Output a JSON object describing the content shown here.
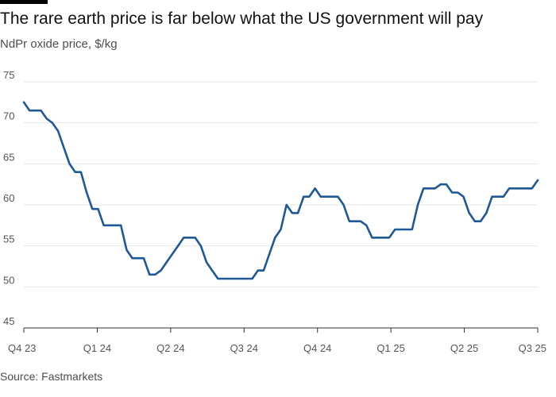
{
  "header": {
    "title": "The rare earth price is far below what the US government will pay",
    "subtitle": "NdPr oxide price, $/kg"
  },
  "footer": {
    "source": "Source: Fastmarkets"
  },
  "colors": {
    "line": "#1f5896",
    "grid": "#e6e6e6",
    "text": "#555555"
  },
  "chart_data": {
    "type": "line",
    "title": "The rare earth price is far below what the US government will pay",
    "subtitle": "NdPr oxide price, $/kg",
    "xlabel": "",
    "ylabel": "",
    "ylim": [
      45,
      75
    ],
    "yticks": [
      45,
      50,
      55,
      60,
      65,
      70,
      75
    ],
    "grid": true,
    "x_tick_labels": [
      "Q4 23",
      "Q1 24",
      "Q2 24",
      "Q3 24",
      "Q4 24",
      "Q1 25",
      "Q2 25",
      "Q3 25"
    ],
    "series": [
      {
        "values": [
          72.5,
          71.5,
          71.5,
          71.5,
          70.5,
          70.0,
          69.0,
          67.0,
          65.0,
          64.0,
          64.0,
          61.5,
          59.5,
          59.5,
          57.5,
          57.5,
          57.5,
          57.5,
          54.5,
          53.5,
          53.5,
          53.5,
          51.5,
          51.5,
          52.0,
          53.0,
          54.0,
          55.0,
          56.0,
          56.0,
          56.0,
          55.0,
          53.0,
          52.0,
          51.0,
          51.0,
          51.0,
          51.0,
          51.0,
          51.0,
          51.0,
          52.0,
          52.0,
          54.0,
          56.0,
          57.0,
          60.0,
          59.0,
          59.0,
          61.0,
          61.0,
          62.0,
          61.0,
          61.0,
          61.0,
          61.0,
          60.0,
          58.0,
          58.0,
          58.0,
          57.5,
          56.0,
          56.0,
          56.0,
          56.0,
          57.0,
          57.0,
          57.0,
          57.0,
          60.0,
          62.0,
          62.0,
          62.0,
          62.5,
          62.5,
          61.5,
          61.5,
          61.0,
          59.0,
          58.0,
          58.0,
          59.0,
          61.0,
          61.0,
          61.0,
          62.0,
          62.0,
          62.0,
          62.0,
          62.0,
          63.0
        ]
      }
    ]
  }
}
